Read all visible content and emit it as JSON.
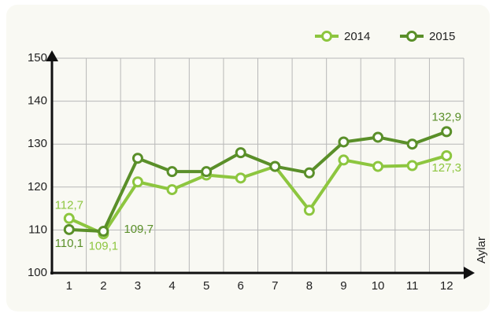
{
  "chart_data": {
    "type": "line",
    "x_label": "Aylar",
    "categories": [
      "1",
      "2",
      "3",
      "4",
      "5",
      "6",
      "7",
      "8",
      "9",
      "10",
      "11",
      "12"
    ],
    "series": [
      {
        "name": "2014",
        "color": "#8dc63f",
        "values": [
          112.7,
          109.1,
          121.2,
          119.4,
          122.8,
          122.1,
          124.8,
          114.6,
          126.3,
          124.8,
          125.0,
          127.3
        ],
        "value_labels": [
          "112,7",
          "109,1",
          null,
          null,
          null,
          null,
          null,
          null,
          null,
          null,
          null,
          "127,3"
        ]
      },
      {
        "name": "2015",
        "color": "#5a8f29",
        "values": [
          110.1,
          109.7,
          126.7,
          123.6,
          123.6,
          128.0,
          124.8,
          123.3,
          130.5,
          131.6,
          130.0,
          132.9
        ],
        "value_labels": [
          "110,1",
          "109,7",
          null,
          null,
          null,
          null,
          null,
          null,
          null,
          null,
          null,
          "132,9"
        ]
      }
    ],
    "ylim": [
      100,
      150
    ],
    "yticks": [
      100,
      110,
      120,
      130,
      140,
      150
    ],
    "grid": true,
    "legend": "top-right"
  }
}
